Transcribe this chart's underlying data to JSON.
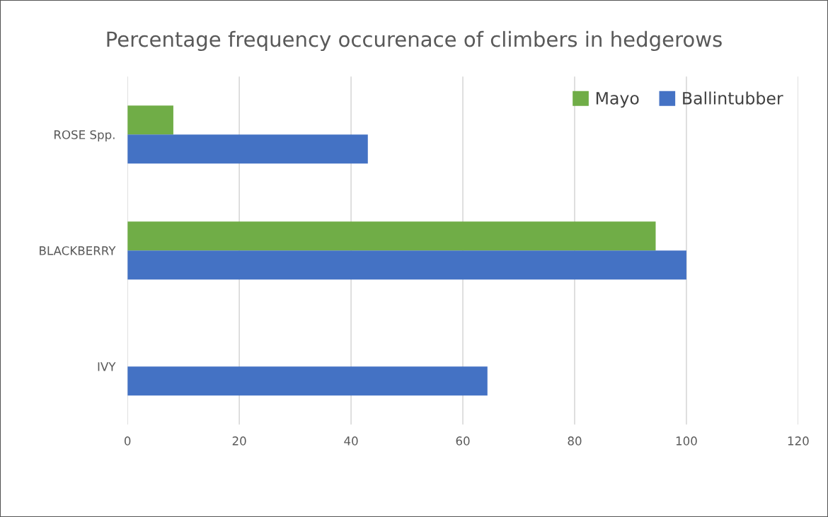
{
  "chart_data": {
    "type": "bar",
    "orientation": "horizontal",
    "title": "Percentage frequency occurenace of climbers in hedgerows",
    "categories": [
      "ROSE Spp.",
      "BLACKBERRY",
      "IVY"
    ],
    "series": [
      {
        "name": "Mayo",
        "color": "#70ad47",
        "values": [
          8.2,
          94.5,
          null
        ]
      },
      {
        "name": "Ballintubber",
        "color": "#4472c4",
        "values": [
          43,
          100,
          64.4
        ]
      }
    ],
    "xlim": [
      0,
      120
    ],
    "xticks": [
      0,
      20,
      40,
      60,
      80,
      100,
      120
    ],
    "grid": "x",
    "legend": "top right"
  }
}
